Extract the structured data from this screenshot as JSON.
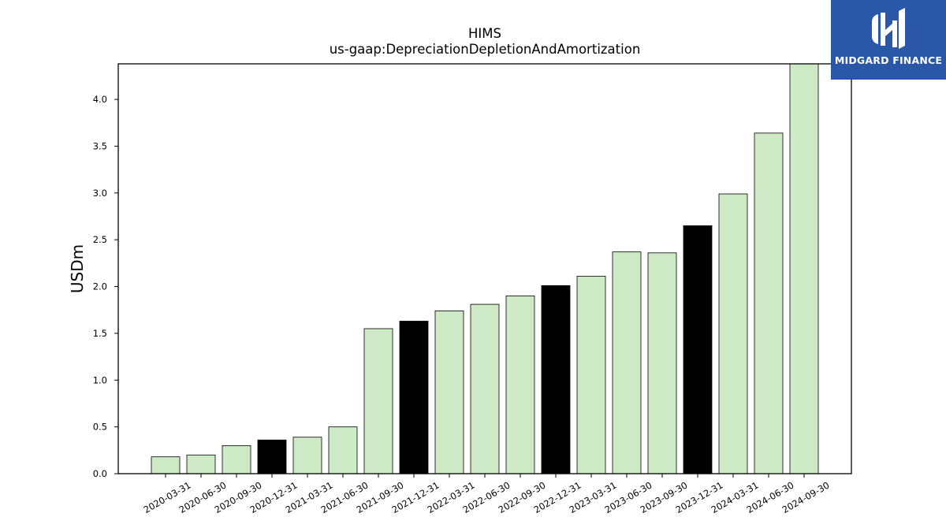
{
  "chart_data": {
    "type": "bar",
    "title": "HIMS",
    "subtitle": "us-gaap:DepreciationDepletionAndAmortization",
    "ylabel": "USDm",
    "xlabel": "",
    "ylim": [
      0,
      4.38
    ],
    "yticks": [
      0.0,
      0.5,
      1.0,
      1.5,
      2.0,
      2.5,
      3.0,
      3.5,
      4.0
    ],
    "ytick_labels": [
      "0.0",
      "0.5",
      "1.0",
      "1.5",
      "2.0",
      "2.5",
      "3.0",
      "3.5",
      "4.0"
    ],
    "categories": [
      "2020-03-31",
      "2020-06-30",
      "2020-09-30",
      "2020-12-31",
      "2021-03-31",
      "2021-06-30",
      "2021-09-30",
      "2021-12-31",
      "2022-03-31",
      "2022-06-30",
      "2022-09-30",
      "2022-12-31",
      "2023-03-31",
      "2023-06-30",
      "2023-09-30",
      "2023-12-31",
      "2024-03-31",
      "2024-06-30",
      "2024-09-30"
    ],
    "values": [
      0.18,
      0.2,
      0.3,
      0.36,
      0.39,
      0.5,
      1.55,
      1.63,
      1.74,
      1.81,
      1.9,
      2.01,
      2.11,
      2.37,
      2.36,
      2.65,
      2.99,
      3.64,
      4.38
    ],
    "bar_colors": [
      "#cde9c6",
      "#cde9c6",
      "#cde9c6",
      "#000000",
      "#cde9c6",
      "#cde9c6",
      "#cde9c6",
      "#000000",
      "#cde9c6",
      "#cde9c6",
      "#cde9c6",
      "#000000",
      "#cde9c6",
      "#cde9c6",
      "#cde9c6",
      "#000000",
      "#cde9c6",
      "#cde9c6",
      "#cde9c6"
    ],
    "grid": false,
    "legend": "none"
  },
  "logo": {
    "text": "MIDGARD FINANCE",
    "background": "#2b57a8"
  }
}
